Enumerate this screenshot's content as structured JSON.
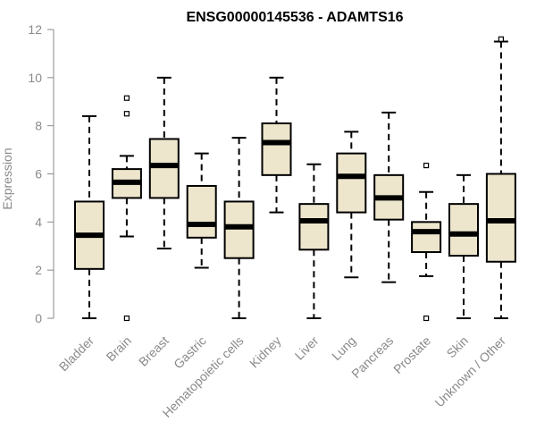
{
  "chart_data": {
    "type": "boxplot",
    "title": "ENSG00000145536 - ADAMTS16",
    "ylabel": "Expression",
    "ylim": [
      0,
      12
    ],
    "yticks": [
      "0",
      "2",
      "4",
      "6",
      "8",
      "10",
      "12"
    ],
    "box_color": "#ede6cd",
    "categories": [
      "Bladder",
      "Brain",
      "Breast",
      "Gastric",
      "Hematopoietic cells",
      "Kidney",
      "Liver",
      "Lung",
      "Pancreas",
      "Prostate",
      "Skin",
      "Unknown / Other"
    ],
    "boxes": [
      {
        "min": 0.0,
        "q1": 2.05,
        "median": 3.45,
        "q3": 4.85,
        "max": 8.4,
        "outliers": []
      },
      {
        "min": 3.4,
        "q1": 5.0,
        "median": 5.65,
        "q3": 6.2,
        "max": 6.75,
        "outliers": [
          0.0,
          8.5,
          9.15
        ]
      },
      {
        "min": 2.9,
        "q1": 5.0,
        "median": 6.35,
        "q3": 7.45,
        "max": 10.0,
        "outliers": []
      },
      {
        "min": 2.1,
        "q1": 3.35,
        "median": 3.9,
        "q3": 5.5,
        "max": 6.85,
        "outliers": []
      },
      {
        "min": 0.0,
        "q1": 2.5,
        "median": 3.8,
        "q3": 4.85,
        "max": 7.5,
        "outliers": []
      },
      {
        "min": 4.4,
        "q1": 5.95,
        "median": 7.3,
        "q3": 8.1,
        "max": 10.0,
        "outliers": []
      },
      {
        "min": 0.0,
        "q1": 2.85,
        "median": 4.05,
        "q3": 4.75,
        "max": 6.4,
        "outliers": []
      },
      {
        "min": 1.7,
        "q1": 4.4,
        "median": 5.9,
        "q3": 6.85,
        "max": 7.75,
        "outliers": []
      },
      {
        "min": 1.5,
        "q1": 4.1,
        "median": 5.0,
        "q3": 5.95,
        "max": 8.55,
        "outliers": []
      },
      {
        "min": 1.75,
        "q1": 2.75,
        "median": 3.6,
        "q3": 4.0,
        "max": 5.25,
        "outliers": [
          0.0,
          6.35
        ]
      },
      {
        "min": 0.0,
        "q1": 2.6,
        "median": 3.5,
        "q3": 4.75,
        "max": 5.95,
        "outliers": []
      },
      {
        "min": 0.0,
        "q1": 2.35,
        "median": 4.05,
        "q3": 6.0,
        "max": 11.5,
        "outliers": [
          11.6
        ]
      }
    ]
  }
}
